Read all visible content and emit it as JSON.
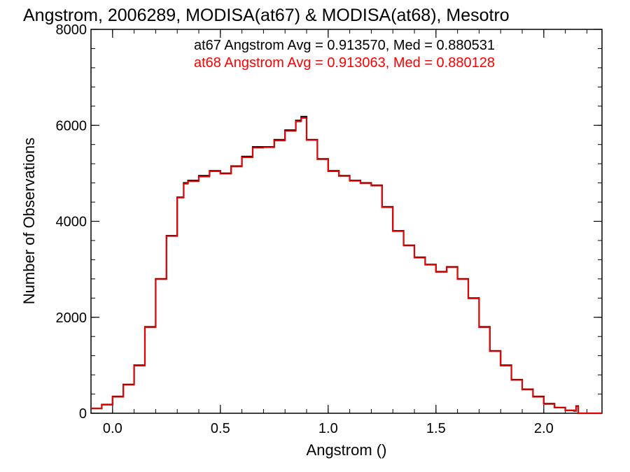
{
  "chart_data": {
    "type": "line",
    "title": "Angstrom, 2006289, MODISA(at67) & MODISA(at68), Mesotro",
    "xlabel": "Angstrom ()",
    "ylabel": "Number of Observations",
    "xlim": [
      -0.1,
      2.27
    ],
    "ylim": [
      0,
      8000
    ],
    "x_ticks": [
      "0.0",
      "0.5",
      "1.0",
      "1.5",
      "2.0"
    ],
    "y_ticks": [
      "0",
      "2000",
      "4000",
      "6000",
      "8000"
    ],
    "annotations": [
      {
        "text": "at67 Angstrom Avg = 0.913570, Med = 0.880531",
        "color": "#000000"
      },
      {
        "text": "at68 Angstrom Avg = 0.913063, Med = 0.880128",
        "color": "#ff0000"
      }
    ],
    "series": [
      {
        "color": "#000000",
        "x": [
          -0.1,
          -0.05,
          0.0,
          0.05,
          0.1,
          0.15,
          0.2,
          0.25,
          0.3,
          0.33,
          0.35,
          0.4,
          0.45,
          0.5,
          0.55,
          0.6,
          0.65,
          0.7,
          0.75,
          0.8,
          0.85,
          0.875,
          0.9,
          0.95,
          1.0,
          1.05,
          1.1,
          1.15,
          1.2,
          1.25,
          1.3,
          1.35,
          1.4,
          1.45,
          1.5,
          1.55,
          1.6,
          1.65,
          1.7,
          1.75,
          1.8,
          1.85,
          1.9,
          1.95,
          2.0,
          2.05,
          2.1,
          2.14,
          2.15,
          2.16,
          2.27
        ],
        "y": [
          100,
          180,
          350,
          600,
          1000,
          1800,
          2800,
          3700,
          4500,
          4800,
          4850,
          4950,
          5050,
          5000,
          5150,
          5350,
          5550,
          5550,
          5700,
          5900,
          6100,
          6180,
          5700,
          5300,
          5050,
          4950,
          4850,
          4800,
          4750,
          4300,
          3800,
          3500,
          3250,
          3100,
          2950,
          3050,
          2800,
          2400,
          1800,
          1300,
          1000,
          700,
          500,
          350,
          200,
          120,
          60,
          50,
          150,
          0,
          0
        ]
      },
      {
        "color": "#ff0000",
        "x": [
          -0.1,
          -0.05,
          0.0,
          0.05,
          0.1,
          0.15,
          0.2,
          0.25,
          0.3,
          0.33,
          0.35,
          0.4,
          0.45,
          0.5,
          0.55,
          0.6,
          0.65,
          0.7,
          0.75,
          0.8,
          0.85,
          0.875,
          0.9,
          0.95,
          1.0,
          1.05,
          1.1,
          1.15,
          1.2,
          1.25,
          1.3,
          1.35,
          1.4,
          1.45,
          1.5,
          1.55,
          1.6,
          1.65,
          1.7,
          1.75,
          1.8,
          1.85,
          1.9,
          1.95,
          2.0,
          2.05,
          2.1,
          2.14,
          2.15,
          2.16,
          2.27
        ],
        "y": [
          100,
          175,
          340,
          590,
          990,
          1790,
          2790,
          3690,
          4490,
          4780,
          4830,
          4930,
          5040,
          4990,
          5140,
          5330,
          5530,
          5540,
          5680,
          5880,
          6080,
          6150,
          5690,
          5290,
          5040,
          4940,
          4840,
          4790,
          4740,
          4290,
          3790,
          3490,
          3240,
          3090,
          2940,
          3040,
          2790,
          2390,
          1790,
          1290,
          990,
          690,
          490,
          340,
          190,
          115,
          55,
          45,
          140,
          0,
          0
        ]
      }
    ]
  }
}
